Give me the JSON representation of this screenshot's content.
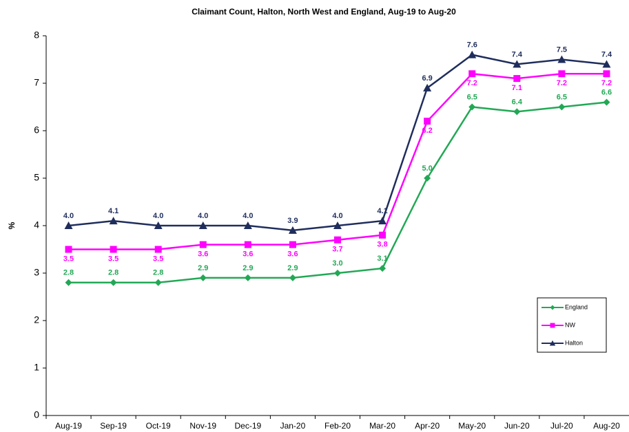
{
  "chart_data": {
    "type": "line",
    "title": "Claimant Count, Halton, North West and England, Aug-19 to Aug-20",
    "y_label": "%",
    "categories": [
      "Aug-19",
      "Sep-19",
      "Oct-19",
      "Nov-19",
      "Dec-19",
      "Jan-20",
      "Feb-20",
      "Mar-20",
      "Apr-20",
      "May-20",
      "Jun-20",
      "Jul-20",
      "Aug-20"
    ],
    "series": [
      {
        "name": "England",
        "color": "#22a855",
        "marker": "diamond",
        "values": [
          2.8,
          2.8,
          2.8,
          2.9,
          2.9,
          2.9,
          3.0,
          3.1,
          5.0,
          6.5,
          6.4,
          6.5,
          6.6
        ],
        "value_labels": [
          "2.8",
          "2.8",
          "2.8",
          "2.9",
          "2.9",
          "2.9",
          "3.0",
          "3.1",
          "5.0",
          "6.5",
          "6.4",
          "6.5",
          "6.6"
        ]
      },
      {
        "name": "NW",
        "color": "#ff00ff",
        "marker": "square",
        "values": [
          3.5,
          3.5,
          3.5,
          3.6,
          3.6,
          3.6,
          3.7,
          3.8,
          6.2,
          7.2,
          7.1,
          7.2,
          7.2
        ],
        "value_labels": [
          "3.5",
          "3.5",
          "3.5",
          "3.6",
          "3.6",
          "3.6",
          "3.7",
          "3.8",
          "6.2",
          "7.2",
          "7.1",
          "7.2",
          "7.2"
        ]
      },
      {
        "name": "Halton",
        "color": "#1f2d5c",
        "marker": "triangle",
        "values": [
          4.0,
          4.1,
          4.0,
          4.0,
          4.0,
          3.9,
          4.0,
          4.1,
          6.9,
          7.6,
          7.4,
          7.5,
          7.4
        ],
        "value_labels": [
          "4.0",
          "4.1",
          "4.0",
          "4.0",
          "4.0",
          "3.9",
          "4.0",
          "4.1",
          "6.9",
          "7.6",
          "7.4",
          "7.5",
          "7.4"
        ]
      }
    ],
    "ylim": [
      0,
      8
    ],
    "yticks": [
      0,
      1,
      2,
      3,
      4,
      5,
      6,
      7,
      8
    ],
    "grid": false,
    "legend": "lower right"
  }
}
